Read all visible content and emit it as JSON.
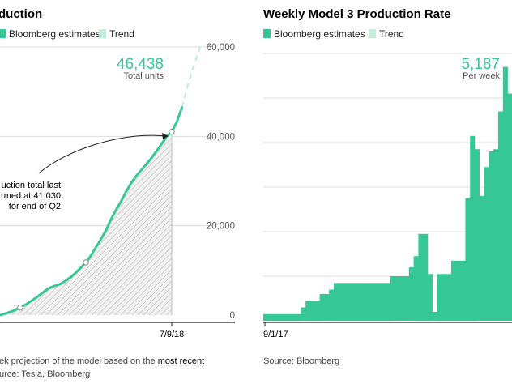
{
  "colors": {
    "accent": "#35c896",
    "trend": "#c4edda",
    "grid": "#dcdcdc",
    "hatch": "#bdbdbd"
  },
  "left": {
    "title": "duction",
    "legend": [
      {
        "label": "Bloomberg estimates",
        "color": "#35c896"
      },
      {
        "label": "Trend",
        "color": "#c4edda"
      }
    ],
    "big_value": "46,438",
    "big_sub": "Total units",
    "annotation_lines": [
      "uction total last",
      "rmed at 41,030",
      "for end of Q2"
    ],
    "x_tick": "7/9/18",
    "footnote_prefix": "ek projection of the model based on the ",
    "footnote_link": "most recent",
    "source": "urce: Tesla, Bloomberg"
  },
  "right": {
    "title": "Weekly Model 3 Production Rate",
    "legend": [
      {
        "label": "Bloomberg estimates",
        "color": "#35c896"
      },
      {
        "label": "Trend",
        "color": "#c4edda"
      }
    ],
    "big_value": "5,187",
    "big_sub": "Per week",
    "x_tick": "9/1/17",
    "source": "Source: Bloomberg"
  },
  "chart_data": [
    {
      "type": "line",
      "title": "duction",
      "y_ticks": [
        "0",
        "20,000",
        "40,000",
        "60,000"
      ],
      "ylim": [
        0,
        60000
      ],
      "grid": true,
      "x_tick_labels": [
        "7/9/18"
      ],
      "series": [
        {
          "name": "Bloomberg estimates",
          "values": [
            0,
            300,
            700,
            1150,
            1700,
            2300,
            3000,
            3750,
            4600,
            5500,
            6200,
            6600,
            7000,
            7700,
            8500,
            9500,
            10600,
            11800,
            13300,
            15200,
            17000,
            19000,
            21500,
            23600,
            25500,
            27700,
            29600,
            31200,
            32500,
            33800,
            35200,
            36700,
            38300,
            40000,
            41030,
            43200,
            46438
          ]
        },
        {
          "name": "Trend",
          "values": [
            46438,
            52000,
            56500,
            61000
          ]
        }
      ],
      "markers": [
        {
          "index": 4,
          "label": ""
        },
        {
          "index": 17,
          "label": ""
        },
        {
          "index": 34,
          "label": "41,030"
        }
      ]
    },
    {
      "type": "bar",
      "title": "Weekly Model 3 Production Rate",
      "ylim": [
        0,
        6000
      ],
      "grid": true,
      "x_tick_labels": [
        "9/1/17"
      ],
      "series": [
        {
          "name": "Bloomberg estimates",
          "values": [
            150,
            150,
            150,
            150,
            150,
            150,
            150,
            150,
            300,
            450,
            450,
            450,
            600,
            600,
            700,
            850,
            850,
            850,
            850,
            850,
            850,
            850,
            850,
            850,
            850,
            850,
            850,
            1000,
            1000,
            1000,
            1000,
            1200,
            1450,
            1950,
            1950,
            1050,
            200,
            1050,
            1050,
            1050,
            1350,
            1350,
            1350,
            2750,
            4150,
            3850,
            2800,
            3450,
            3800,
            3850,
            4700,
            5700,
            5100
          ]
        }
      ]
    }
  ]
}
